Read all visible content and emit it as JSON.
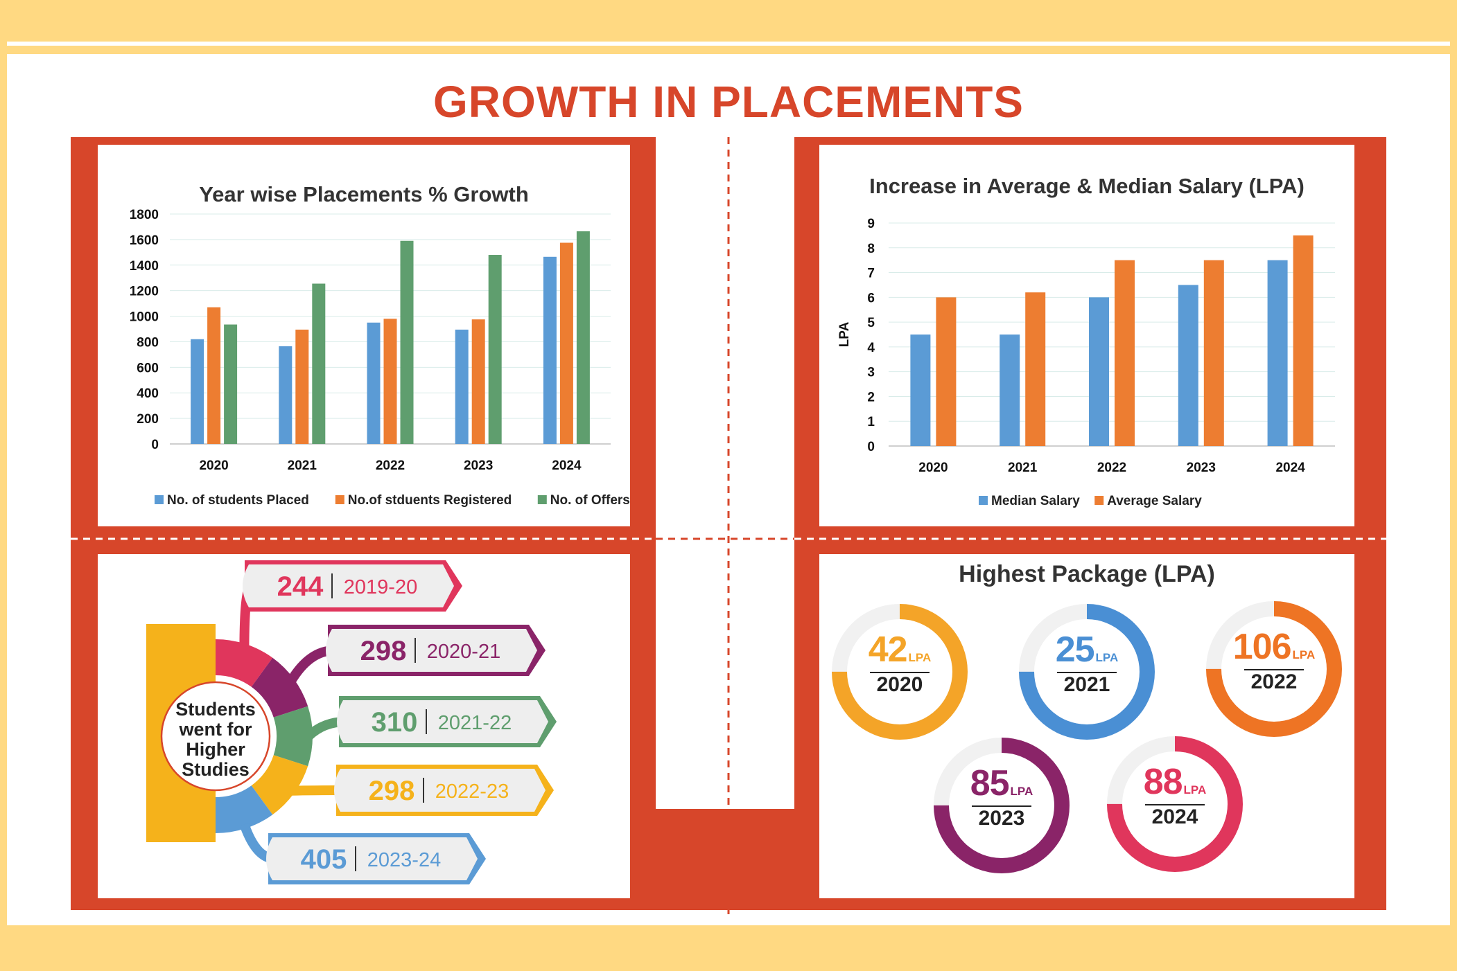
{
  "page": {
    "title": "GROWTH  IN PLACEMENTS",
    "colors": {
      "accent": "#D7462A",
      "band": "#FFD982"
    }
  },
  "chart_data": [
    {
      "type": "bar",
      "title": "Year wise Placements % Growth",
      "categories": [
        "2020",
        "2021",
        "2022",
        "2023",
        "2024"
      ],
      "series": [
        {
          "name": "No. of students Placed",
          "color": "#5B9BD5",
          "values": [
            820,
            765,
            950,
            895,
            1465
          ]
        },
        {
          "name": "No.of stduents Registered",
          "color": "#ED7D31",
          "values": [
            1070,
            895,
            980,
            975,
            1575
          ]
        },
        {
          "name": "No. of Offers",
          "color": "#5F9E6E",
          "values": [
            935,
            1255,
            1590,
            1480,
            1665
          ]
        }
      ],
      "yticks": [
        "0",
        "200",
        "400",
        "600",
        "800",
        "1000",
        "1200",
        "1400",
        "1600",
        "1800"
      ],
      "ylim": [
        0,
        1800
      ],
      "ylabel": "",
      "grid": true,
      "legend": "bottom"
    },
    {
      "type": "bar",
      "title": "Increase in Average & Median Salary (LPA)",
      "categories": [
        "2020",
        "2021",
        "2022",
        "2023",
        "2024"
      ],
      "series": [
        {
          "name": "Median Salary",
          "color": "#5B9BD5",
          "values": [
            4.5,
            4.5,
            6,
            6.5,
            7.5
          ]
        },
        {
          "name": "Average Salary",
          "color": "#ED7D31",
          "values": [
            6,
            6.2,
            7.5,
            7.5,
            8.5
          ]
        }
      ],
      "yticks": [
        "0",
        "1",
        "2",
        "3",
        "4",
        "5",
        "6",
        "7",
        "8",
        "9"
      ],
      "ylim": [
        0,
        9
      ],
      "ylabel": "LPA",
      "grid": true,
      "legend": "bottom"
    }
  ],
  "higher_studies": {
    "center_lines": [
      "Students",
      "went for",
      "Higher",
      "Studies"
    ],
    "items": [
      {
        "value": "244",
        "year": "2019-20",
        "color": "#E0365C"
      },
      {
        "value": "298",
        "year": "2020-21",
        "color": "#8A2468"
      },
      {
        "value": "310",
        "year": "2021-22",
        "color": "#5F9E6E"
      },
      {
        "value": "298",
        "year": "2022-23",
        "color": "#F5B21B"
      },
      {
        "value": "405",
        "year": "2023-24",
        "color": "#5B9BD5"
      }
    ]
  },
  "highest_package": {
    "title": "Highest Package (LPA)",
    "unit": "LPA",
    "items": [
      {
        "value": "42",
        "year": "2020",
        "color": "#F4A428",
        "fraction": 0.75
      },
      {
        "value": "25",
        "year": "2021",
        "color": "#4A8FD4",
        "fraction": 0.75
      },
      {
        "value": "106",
        "year": "2022",
        "color": "#EE7424",
        "fraction": 0.75
      },
      {
        "value": "85",
        "year": "2023",
        "color": "#8A2468",
        "fraction": 0.75
      },
      {
        "value": "88",
        "year": "2024",
        "color": "#E0365C",
        "fraction": 0.75
      }
    ]
  }
}
